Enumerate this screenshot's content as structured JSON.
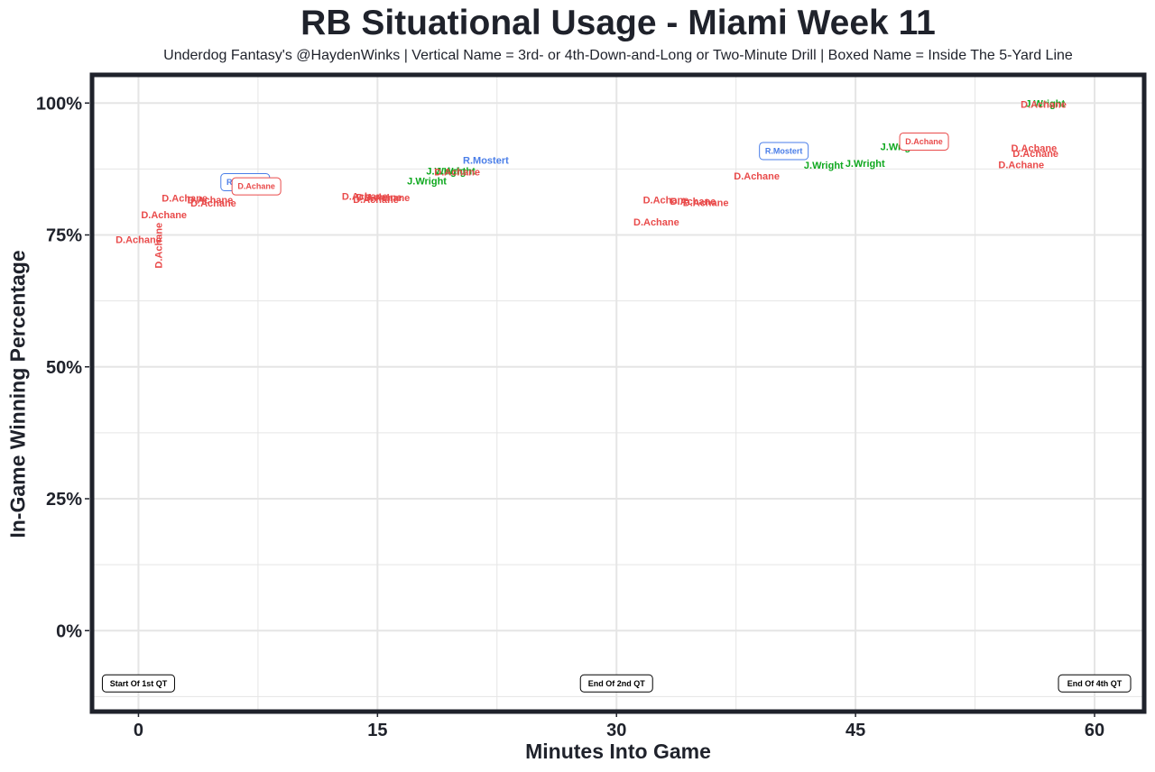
{
  "title": "RB Situational Usage - Miami Week 11",
  "subtitle": "Underdog Fantasy's @HaydenWinks | Vertical Name = 3rd- or 4th-Down-and-Long or Two-Minute Drill | Boxed Name = Inside The 5-Yard Line",
  "colors": {
    "R.Mostert": "#4a7ee8",
    "D.Achane": "#e94b4b",
    "J.Wright": "#0fa81f",
    "frame": "#1f222b",
    "grid": "#e5e5e5"
  },
  "chart_data": {
    "type": "scatter",
    "title": "RB Situational Usage - Miami Week 11",
    "subtitle": "Underdog Fantasy's @HaydenWinks | Vertical Name = 3rd- or 4th-Down-and-Long or Two-Minute Drill | Boxed Name = Inside The 5-Yard Line",
    "xlabel": "Minutes Into Game",
    "ylabel": "In-Game Winning Percentage",
    "xlim": [
      -2.8,
      63.0
    ],
    "ylim": [
      -15.0,
      105.0
    ],
    "x_ticks": [
      0,
      15,
      30,
      45,
      60
    ],
    "y_ticks": [
      0,
      25,
      50,
      75,
      100
    ],
    "y_tick_labels": [
      "0%",
      "25%",
      "50%",
      "75%",
      "100%"
    ],
    "grid": true,
    "legend": "none",
    "points": [
      {
        "player": "D.Achane",
        "x": 0.0,
        "y": 74.0
      },
      {
        "player": "D.Achane",
        "x": 1.3,
        "y": 73.0,
        "vertical": true
      },
      {
        "player": "D.Achane",
        "x": 1.6,
        "y": 78.7
      },
      {
        "player": "D.Achane",
        "x": 2.9,
        "y": 81.8
      },
      {
        "player": "D.Achane",
        "x": 4.5,
        "y": 81.5
      },
      {
        "player": "D.Achane",
        "x": 4.7,
        "y": 80.9
      },
      {
        "player": "R.Mostert",
        "x": 6.7,
        "y": 85.0,
        "boxed": true
      },
      {
        "player": "D.Achane",
        "x": 7.4,
        "y": 84.2,
        "boxed": true
      },
      {
        "player": "D.Achane",
        "x": 14.2,
        "y": 82.2
      },
      {
        "player": "D.Achane",
        "x": 15.1,
        "y": 82.0
      },
      {
        "player": "D.Achane",
        "x": 15.6,
        "y": 81.9
      },
      {
        "player": "D.Achane",
        "x": 14.9,
        "y": 81.6
      },
      {
        "player": "J.Wright",
        "x": 18.1,
        "y": 85.1
      },
      {
        "player": "J.Wright",
        "x": 19.3,
        "y": 87.0
      },
      {
        "player": "J.Wright",
        "x": 19.9,
        "y": 87.0
      },
      {
        "player": "D.Achane",
        "x": 20.0,
        "y": 86.8
      },
      {
        "player": "R.Mostert",
        "x": 21.8,
        "y": 89.0
      },
      {
        "player": "D.Achane",
        "x": 33.1,
        "y": 81.5
      },
      {
        "player": "D.Achane",
        "x": 34.8,
        "y": 81.2
      },
      {
        "player": "D.Achane",
        "x": 35.6,
        "y": 81.0
      },
      {
        "player": "D.Achane",
        "x": 32.5,
        "y": 77.3
      },
      {
        "player": "D.Achane",
        "x": 38.8,
        "y": 86.0
      },
      {
        "player": "R.Mostert",
        "x": 40.5,
        "y": 90.9,
        "boxed": true
      },
      {
        "player": "J.Wright",
        "x": 43.0,
        "y": 88.1
      },
      {
        "player": "J.Wright",
        "x": 45.6,
        "y": 88.4
      },
      {
        "player": "J.Wright",
        "x": 47.8,
        "y": 91.6
      },
      {
        "player": "D.Achane",
        "x": 49.3,
        "y": 92.7,
        "boxed": true
      },
      {
        "player": "D.Achane",
        "x": 55.4,
        "y": 88.2
      },
      {
        "player": "D.Achane",
        "x": 56.2,
        "y": 91.3
      },
      {
        "player": "D.Achane",
        "x": 56.3,
        "y": 90.3
      },
      {
        "player": "J.Wright",
        "x": 56.9,
        "y": 99.8
      },
      {
        "player": "D.Achane",
        "x": 56.8,
        "y": 99.6
      }
    ],
    "annotations": [
      {
        "text": "Start Of 1st QT",
        "x": 0.0,
        "y": -10.0
      },
      {
        "text": "End Of 2nd QT",
        "x": 30.0,
        "y": -10.0
      },
      {
        "text": "End Of 4th QT",
        "x": 60.0,
        "y": -10.0
      }
    ]
  }
}
